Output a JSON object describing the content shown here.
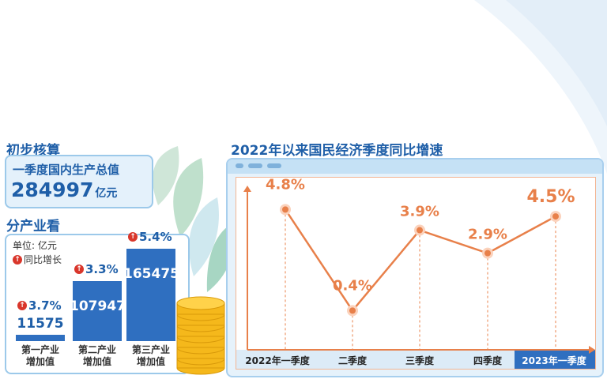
{
  "summary": {
    "section_title": "初步核算",
    "gdp_label": "一季度国内生产总值",
    "gdp_value": "284997",
    "gdp_unit": "亿元"
  },
  "sectors": {
    "section_title": "分产业看",
    "unit": "单位: 亿元",
    "legend": "同比增长",
    "items": [
      {
        "label_line1": "第一产业",
        "label_line2": "增加值",
        "value": "11575",
        "growth": "3.7%"
      },
      {
        "label_line1": "第二产业",
        "label_line2": "增加值",
        "value": "107947",
        "growth": "3.3%"
      },
      {
        "label_line1": "第三产业",
        "label_line2": "增加值",
        "value": "165475",
        "growth": "5.4%"
      }
    ]
  },
  "colors": {
    "primary_blue": "#1f5fa8",
    "bar_blue": "#2f6fc0",
    "line_orange": "#e8804a",
    "growth_icon_red": "#d9362b"
  },
  "chart_data": [
    {
      "type": "bar",
      "title": "分产业看",
      "categories": [
        "第一产业增加值",
        "第二产业增加值",
        "第三产业增加值"
      ],
      "values": [
        11575,
        107947,
        165475
      ],
      "growth": [
        "3.7%",
        "3.3%",
        "5.4%"
      ],
      "ylabel": "",
      "ylim": [
        0,
        170000
      ]
    },
    {
      "type": "line",
      "title": "2022年以来国民经济季度同比增速",
      "categories": [
        "2022年一季度",
        "二季度",
        "三季度",
        "四季度",
        "2023年一季度"
      ],
      "values": [
        4.8,
        0.4,
        3.9,
        2.9,
        4.5
      ],
      "labels": [
        "4.8%",
        "0.4%",
        "3.9%",
        "2.9%",
        "4.5%"
      ],
      "xlabel": "",
      "ylabel": "",
      "ylim": [
        0,
        5.5
      ],
      "grid": false
    }
  ]
}
